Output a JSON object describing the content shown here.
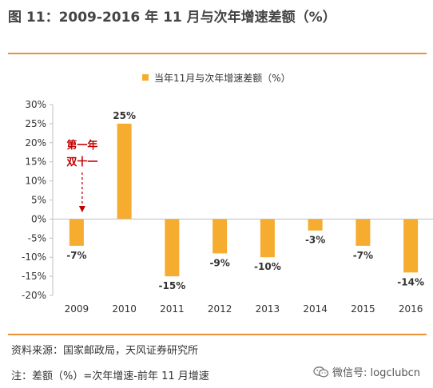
{
  "figure": {
    "title": "图 11：2009-2016 年 11 月与次年增速差额（%）",
    "source": "资料来源：国家邮政局，天风证券研究所",
    "note": "注：差额（%）=次年增速-前年 11 月增速",
    "watermark": "微信号: logclubcn",
    "accent_color": "#E8913A"
  },
  "chart_data": {
    "type": "bar",
    "categories": [
      "2009",
      "2010",
      "2011",
      "2012",
      "2013",
      "2014",
      "2015",
      "2016"
    ],
    "series": [
      {
        "name": "当年11月与次年增速差额（%）",
        "values": [
          -7,
          25,
          -15,
          -9,
          -10,
          -3,
          -7,
          -14
        ],
        "color": "#F6AC2E"
      }
    ],
    "data_labels": [
      "-7%",
      "25%",
      "-15%",
      "-9%",
      "-10%",
      "-3%",
      "-7%",
      "-14%"
    ],
    "yticks": [
      30,
      25,
      20,
      15,
      10,
      5,
      0,
      -5,
      -10,
      -15,
      -20
    ],
    "ytick_labels": [
      "30%",
      "25%",
      "20%",
      "15%",
      "10%",
      "5%",
      "0%",
      "-5%",
      "-10%",
      "-15%",
      "-20%"
    ],
    "ylim": [
      -20,
      30
    ],
    "legend_position": "top",
    "annotation": {
      "lines": [
        "第一年",
        "双十一"
      ],
      "target_category": "2009",
      "color": "#C00000"
    },
    "grid": false
  }
}
